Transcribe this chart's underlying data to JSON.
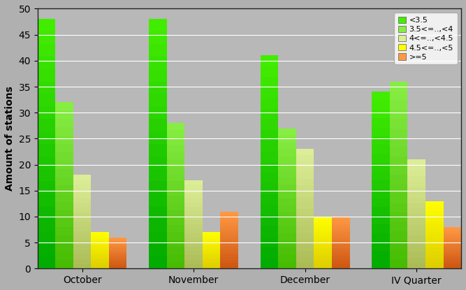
{
  "categories": [
    "October",
    "November",
    "December",
    "IV Quarter"
  ],
  "series": [
    {
      "label": "<3.5",
      "values": [
        48,
        48,
        41,
        34
      ],
      "color_top": "#44ee00",
      "color_bot": "#00aa00"
    },
    {
      "label": "3.5<=..,<4",
      "values": [
        32,
        28,
        27,
        36
      ],
      "color_top": "#88ee44",
      "color_bot": "#44bb00"
    },
    {
      "label": "4<=..,<4.5",
      "values": [
        18,
        17,
        23,
        21
      ],
      "color_top": "#ddee99",
      "color_bot": "#aabb55"
    },
    {
      "label": "4.5<=..,<5",
      "values": [
        7,
        7,
        10,
        13
      ],
      "color_top": "#ffff00",
      "color_bot": "#ddcc00"
    },
    {
      "label": ">=5",
      "values": [
        6,
        11,
        10,
        8
      ],
      "color_top": "#ff9944",
      "color_bot": "#cc5511"
    }
  ],
  "legend_labels": [
    "<3.5",
    "3.5<=..,<4",
    "4<=..,<4.5",
    "4.5<=..,<5",
    ">=5"
  ],
  "legend_colors": [
    "#44ee00",
    "#88ee44",
    "#ddee99",
    "#ffff00",
    "#ff9944"
  ],
  "ylabel": "Amount of stations",
  "ylim": [
    0,
    50
  ],
  "yticks": [
    0,
    5,
    10,
    15,
    20,
    25,
    30,
    35,
    40,
    45,
    50
  ],
  "background_color": "#b0b0b0",
  "plot_background_color": "#b8b8b8",
  "grid_color": "#ffffff",
  "legend_fontsize": 8,
  "ylabel_fontsize": 10,
  "tick_fontsize": 10
}
